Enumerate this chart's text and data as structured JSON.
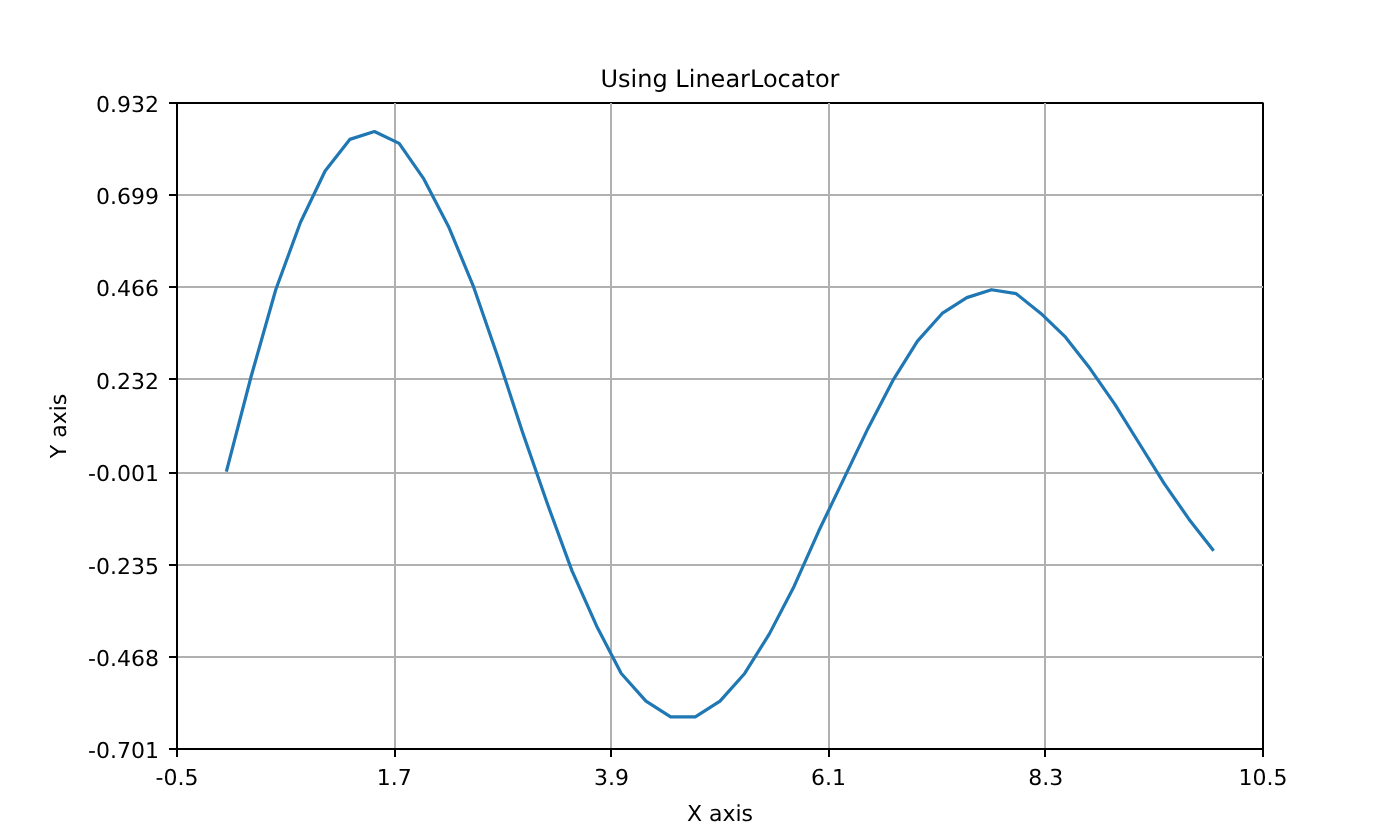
{
  "chart_data": {
    "type": "line",
    "title": "Using LinearLocator",
    "xlabel": "X axis",
    "ylabel": "Y axis",
    "x": [
      0,
      0.25,
      0.5,
      0.75,
      1.0,
      1.25,
      1.5,
      1.75,
      2.0,
      2.25,
      2.5,
      2.75,
      3.0,
      3.25,
      3.5,
      3.75,
      4.0,
      4.25,
      4.5,
      4.75,
      5.0,
      5.25,
      5.5,
      5.75,
      6.0,
      6.25,
      6.5,
      6.75,
      7.0,
      7.25,
      7.5,
      7.75,
      8.0,
      8.25,
      8.5,
      8.75,
      9.0,
      9.25,
      9.5,
      9.75,
      10.0
    ],
    "values": [
      0.0,
      0.24,
      0.46,
      0.63,
      0.76,
      0.84,
      0.86,
      0.83,
      0.74,
      0.62,
      0.47,
      0.29,
      0.1,
      -0.08,
      -0.25,
      -0.39,
      -0.51,
      -0.58,
      -0.62,
      -0.62,
      -0.58,
      -0.51,
      -0.41,
      -0.29,
      -0.15,
      -0.02,
      0.11,
      0.23,
      0.33,
      0.4,
      0.44,
      0.46,
      0.45,
      0.4,
      0.34,
      0.26,
      0.17,
      0.07,
      -0.03,
      -0.12,
      -0.2
    ],
    "color": "#1f77b4",
    "xlim": [
      -0.5,
      10.5
    ],
    "ylim": [
      -0.701,
      0.932
    ],
    "xticks": [
      -0.5,
      1.7,
      3.9,
      6.1,
      8.3,
      10.5
    ],
    "yticks": [
      -0.701,
      -0.468,
      -0.235,
      -0.001,
      0.232,
      0.466,
      0.699,
      0.932
    ],
    "grid": true
  }
}
